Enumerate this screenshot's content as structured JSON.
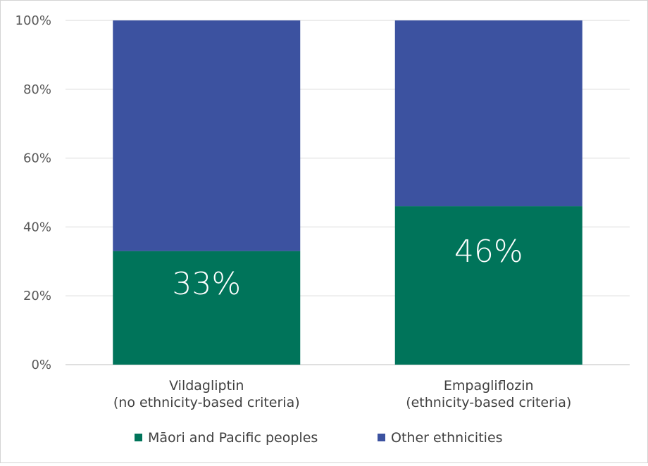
{
  "chart_data": {
    "type": "bar",
    "stacked": true,
    "title": "",
    "xlabel": "",
    "ylabel": "",
    "ylim": [
      0,
      100
    ],
    "yticks": [
      0,
      20,
      40,
      60,
      80,
      100
    ],
    "ytick_labels": [
      "0%",
      "20%",
      "40%",
      "60%",
      "80%",
      "100%"
    ],
    "grid": true,
    "legend_position": "bottom",
    "categories": [
      [
        "Vildagliptin",
        "(no ethnicity-based criteria)"
      ],
      [
        "Empagliflozin",
        "(ethnicity-based criteria)"
      ]
    ],
    "series": [
      {
        "name": "Māori and Pacific peoples",
        "values": [
          33,
          46
        ],
        "color": "#00745a",
        "data_labels": [
          "33%",
          "46%"
        ]
      },
      {
        "name": "Other ethnicities",
        "values": [
          67,
          54
        ],
        "color": "#3c52a0"
      }
    ]
  }
}
